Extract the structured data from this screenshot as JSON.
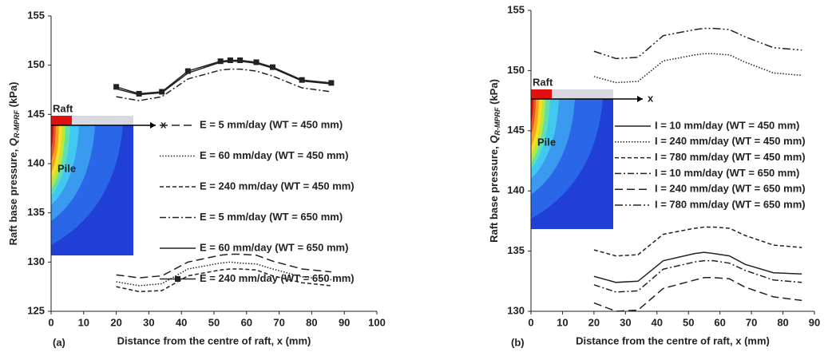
{
  "chart_data": [
    {
      "type": "line",
      "panel_label": "(a)",
      "xlabel": "Distance from the centre of raft, x (mm)",
      "ylabel": "Raft base pressure, ",
      "ylabel_symbol": "Q",
      "ylabel_subscript": "R-MPRF",
      "ylabel_unit": " (kPa)",
      "inset_labels": [
        "Raft",
        "Pile",
        "x"
      ],
      "xlim": [
        0,
        100
      ],
      "xticks": [
        0,
        10,
        20,
        30,
        40,
        50,
        60,
        70,
        80,
        90,
        100
      ],
      "ylim": [
        125,
        155
      ],
      "yticks": [
        125,
        130,
        135,
        140,
        145,
        150,
        155
      ],
      "x": [
        20,
        27,
        34,
        42,
        52,
        55,
        58,
        63,
        68,
        77,
        86
      ],
      "series": [
        {
          "name": "E = 5 mm/day (WT = 450 mm)",
          "color": "#222222",
          "dash": "10,5",
          "values": [
            128.7,
            128.4,
            128.6,
            130.0,
            130.7,
            130.8,
            130.8,
            130.7,
            130.1,
            129.3,
            129.0
          ]
        },
        {
          "name": "E = 60 mm/day (WT = 450 mm)",
          "color": "#222222",
          "dash": "1.5,2",
          "values": [
            128.0,
            127.6,
            127.8,
            129.3,
            129.9,
            130.0,
            129.9,
            129.8,
            129.3,
            128.5,
            128.2
          ]
        },
        {
          "name": "E = 240 mm/day (WT = 450 mm)",
          "color": "#222222",
          "dash": "5,3",
          "values": [
            127.5,
            127.0,
            127.1,
            128.6,
            129.2,
            129.3,
            129.3,
            129.2,
            128.6,
            127.9,
            127.6
          ]
        },
        {
          "name": "E = 5 mm/day (WT = 650 mm)",
          "color": "#222222",
          "dash": "8,3,2,3",
          "values": [
            146.8,
            146.4,
            146.8,
            148.6,
            149.5,
            149.6,
            149.6,
            149.4,
            148.9,
            147.7,
            147.3
          ]
        },
        {
          "name": "E = 60 mm/day (WT = 650 mm)",
          "color": "#222222",
          "dash": "none",
          "values": [
            147.6,
            147.0,
            147.2,
            149.2,
            150.3,
            150.4,
            150.4,
            150.2,
            149.7,
            148.4,
            148.1
          ]
        },
        {
          "name": "E = 240 mm/day (WT = 650 mm)",
          "color": "#222222",
          "dash": "none",
          "marker": "square",
          "values": [
            147.8,
            147.1,
            147.3,
            149.4,
            150.4,
            150.5,
            150.5,
            150.3,
            149.8,
            148.5,
            148.2
          ]
        }
      ]
    },
    {
      "type": "line",
      "panel_label": "(b)",
      "xlabel": "Distance from the centre of raft, x (mm)",
      "ylabel": "Raft base pressure, ",
      "ylabel_symbol": "Q",
      "ylabel_subscript": "R-MPRF",
      "ylabel_unit": " (kPa)",
      "inset_labels": [
        "Raft",
        "Pile",
        "x"
      ],
      "xlim": [
        0,
        90
      ],
      "xticks": [
        0,
        10,
        20,
        30,
        40,
        50,
        60,
        70,
        80,
        90
      ],
      "ylim": [
        130,
        155
      ],
      "yticks": [
        130,
        135,
        140,
        145,
        150,
        155
      ],
      "x": [
        20,
        27,
        34,
        42,
        52,
        55,
        58,
        63,
        68,
        77,
        86
      ],
      "series": [
        {
          "name": "I = 10 mm/day (WT = 450 mm)",
          "color": "#222222",
          "dash": "none",
          "values": [
            132.9,
            132.4,
            132.5,
            134.2,
            134.8,
            134.9,
            134.8,
            134.6,
            133.9,
            133.2,
            133.1
          ]
        },
        {
          "name": "I = 240 mm/day (WT = 450 mm)",
          "color": "#222222",
          "dash": "1.5,2",
          "values": [
            149.5,
            149.0,
            149.1,
            150.8,
            151.3,
            151.4,
            151.4,
            151.3,
            150.7,
            149.8,
            149.6
          ]
        },
        {
          "name": "I = 780 mm/day (WT = 450 mm)",
          "color": "#222222",
          "dash": "5,3",
          "values": [
            135.1,
            134.6,
            134.7,
            136.4,
            136.9,
            137.0,
            137.0,
            136.9,
            136.3,
            135.5,
            135.3
          ]
        },
        {
          "name": "I = 10 mm/day (WT = 650 mm)",
          "color": "#222222",
          "dash": "8,3,2,3",
          "values": [
            132.2,
            131.6,
            131.7,
            133.5,
            134.1,
            134.2,
            134.2,
            134.0,
            133.4,
            132.6,
            132.4
          ]
        },
        {
          "name": "I = 240 mm/day (WT = 650 mm)",
          "color": "#222222",
          "dash": "10,5",
          "values": [
            130.7,
            130.0,
            130.1,
            131.9,
            132.6,
            132.8,
            132.8,
            132.7,
            132.0,
            131.2,
            130.9
          ]
        },
        {
          "name": "I = 780 mm/day (WT = 650 mm)",
          "color": "#222222",
          "dash": "10,3,2,3,2,3",
          "values": [
            151.6,
            151.0,
            151.1,
            152.9,
            153.4,
            153.5,
            153.5,
            153.4,
            152.8,
            151.9,
            151.7
          ]
        }
      ]
    }
  ]
}
